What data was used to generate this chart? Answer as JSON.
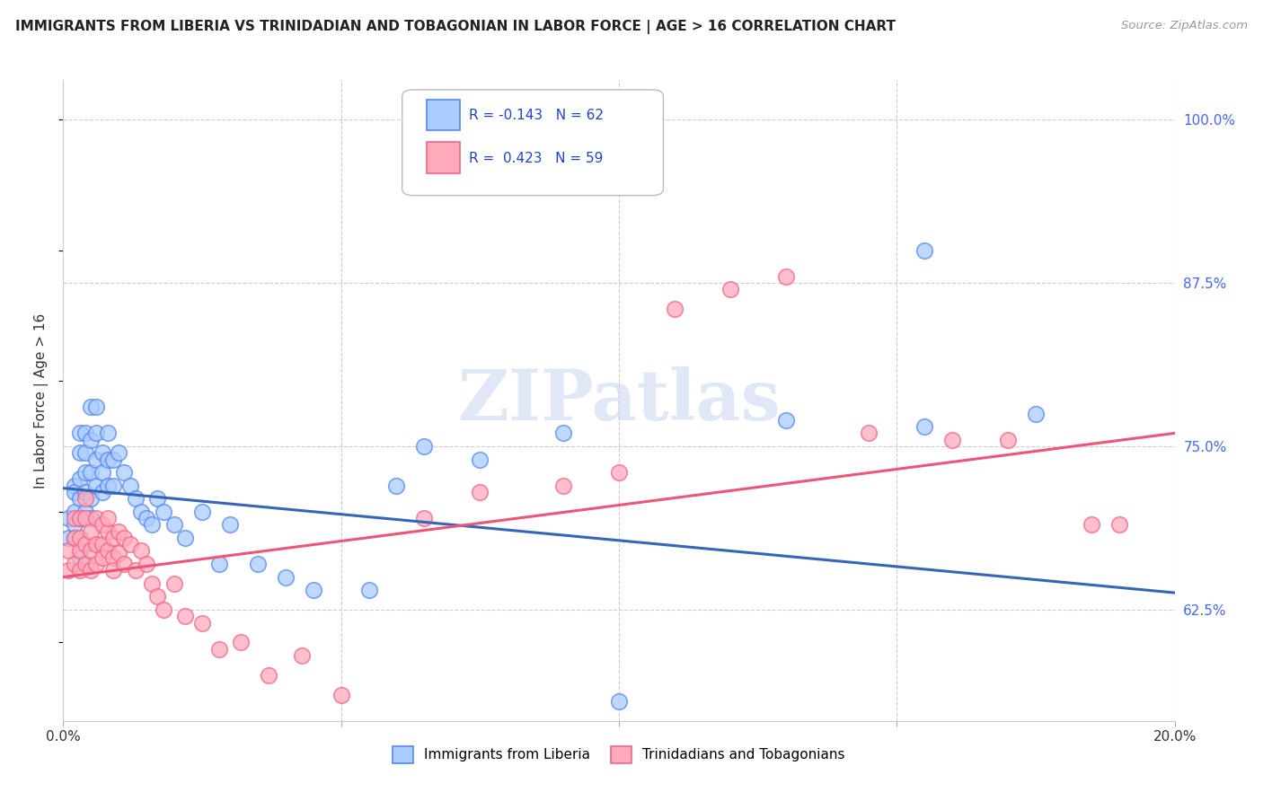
{
  "title": "IMMIGRANTS FROM LIBERIA VS TRINIDADIAN AND TOBAGONIAN IN LABOR FORCE | AGE > 16 CORRELATION CHART",
  "source": "Source: ZipAtlas.com",
  "ylabel": "In Labor Force | Age > 16",
  "xlim": [
    0.0,
    0.2
  ],
  "ylim": [
    0.54,
    1.03
  ],
  "xticks": [
    0.0,
    0.05,
    0.1,
    0.15,
    0.2
  ],
  "xticklabels": [
    "0.0%",
    "",
    "",
    "",
    "20.0%"
  ],
  "yticks_right": [
    0.625,
    0.75,
    0.875,
    1.0
  ],
  "yticklabels_right": [
    "62.5%",
    "75.0%",
    "87.5%",
    "100.0%"
  ],
  "grid_color": "#cccccc",
  "background_color": "#ffffff",
  "blue_edge_color": "#5588ee",
  "blue_face_color": "#aaccff",
  "pink_edge_color": "#ee6688",
  "pink_face_color": "#ffaabb",
  "blue_line_color": "#3366bb",
  "pink_line_color": "#ee5577",
  "label1": "Immigrants from Liberia",
  "label2": "Trinidadians and Tobagonians",
  "watermark": "ZIPatlas",
  "blue_trend_x0": 0.0,
  "blue_trend_x1": 0.2,
  "blue_trend_y0": 0.718,
  "blue_trend_y1": 0.638,
  "pink_trend_x0": 0.0,
  "pink_trend_x1": 0.2,
  "pink_trend_y0": 0.65,
  "pink_trend_y1": 0.76,
  "blue_x": [
    0.001,
    0.001,
    0.002,
    0.002,
    0.002,
    0.002,
    0.002,
    0.003,
    0.003,
    0.003,
    0.003,
    0.003,
    0.003,
    0.004,
    0.004,
    0.004,
    0.004,
    0.004,
    0.005,
    0.005,
    0.005,
    0.005,
    0.005,
    0.006,
    0.006,
    0.006,
    0.006,
    0.007,
    0.007,
    0.007,
    0.008,
    0.008,
    0.008,
    0.009,
    0.009,
    0.01,
    0.011,
    0.012,
    0.013,
    0.014,
    0.015,
    0.016,
    0.017,
    0.018,
    0.02,
    0.022,
    0.025,
    0.028,
    0.03,
    0.035,
    0.04,
    0.045,
    0.055,
    0.06,
    0.065,
    0.075,
    0.09,
    0.1,
    0.13,
    0.155,
    0.155,
    0.175
  ],
  "blue_y": [
    0.695,
    0.68,
    0.72,
    0.7,
    0.715,
    0.69,
    0.68,
    0.76,
    0.745,
    0.725,
    0.71,
    0.695,
    0.665,
    0.76,
    0.745,
    0.73,
    0.715,
    0.7,
    0.78,
    0.755,
    0.73,
    0.71,
    0.695,
    0.78,
    0.76,
    0.74,
    0.72,
    0.745,
    0.73,
    0.715,
    0.76,
    0.74,
    0.72,
    0.74,
    0.72,
    0.745,
    0.73,
    0.72,
    0.71,
    0.7,
    0.695,
    0.69,
    0.71,
    0.7,
    0.69,
    0.68,
    0.7,
    0.66,
    0.69,
    0.66,
    0.65,
    0.64,
    0.64,
    0.72,
    0.75,
    0.74,
    0.76,
    0.555,
    0.77,
    0.765,
    0.9,
    0.775
  ],
  "pink_x": [
    0.001,
    0.001,
    0.002,
    0.002,
    0.002,
    0.003,
    0.003,
    0.003,
    0.003,
    0.004,
    0.004,
    0.004,
    0.004,
    0.005,
    0.005,
    0.005,
    0.006,
    0.006,
    0.006,
    0.007,
    0.007,
    0.007,
    0.008,
    0.008,
    0.008,
    0.009,
    0.009,
    0.009,
    0.01,
    0.01,
    0.011,
    0.011,
    0.012,
    0.013,
    0.014,
    0.015,
    0.016,
    0.017,
    0.018,
    0.02,
    0.022,
    0.025,
    0.028,
    0.032,
    0.037,
    0.043,
    0.05,
    0.065,
    0.075,
    0.09,
    0.1,
    0.11,
    0.12,
    0.13,
    0.145,
    0.16,
    0.17,
    0.185,
    0.19
  ],
  "pink_y": [
    0.67,
    0.655,
    0.68,
    0.66,
    0.695,
    0.67,
    0.655,
    0.68,
    0.695,
    0.675,
    0.66,
    0.695,
    0.71,
    0.67,
    0.655,
    0.685,
    0.675,
    0.66,
    0.695,
    0.675,
    0.69,
    0.665,
    0.685,
    0.67,
    0.695,
    0.68,
    0.665,
    0.655,
    0.685,
    0.668,
    0.68,
    0.66,
    0.675,
    0.655,
    0.67,
    0.66,
    0.645,
    0.635,
    0.625,
    0.645,
    0.62,
    0.615,
    0.595,
    0.6,
    0.575,
    0.59,
    0.56,
    0.695,
    0.715,
    0.72,
    0.73,
    0.855,
    0.87,
    0.88,
    0.76,
    0.755,
    0.755,
    0.69,
    0.69
  ]
}
